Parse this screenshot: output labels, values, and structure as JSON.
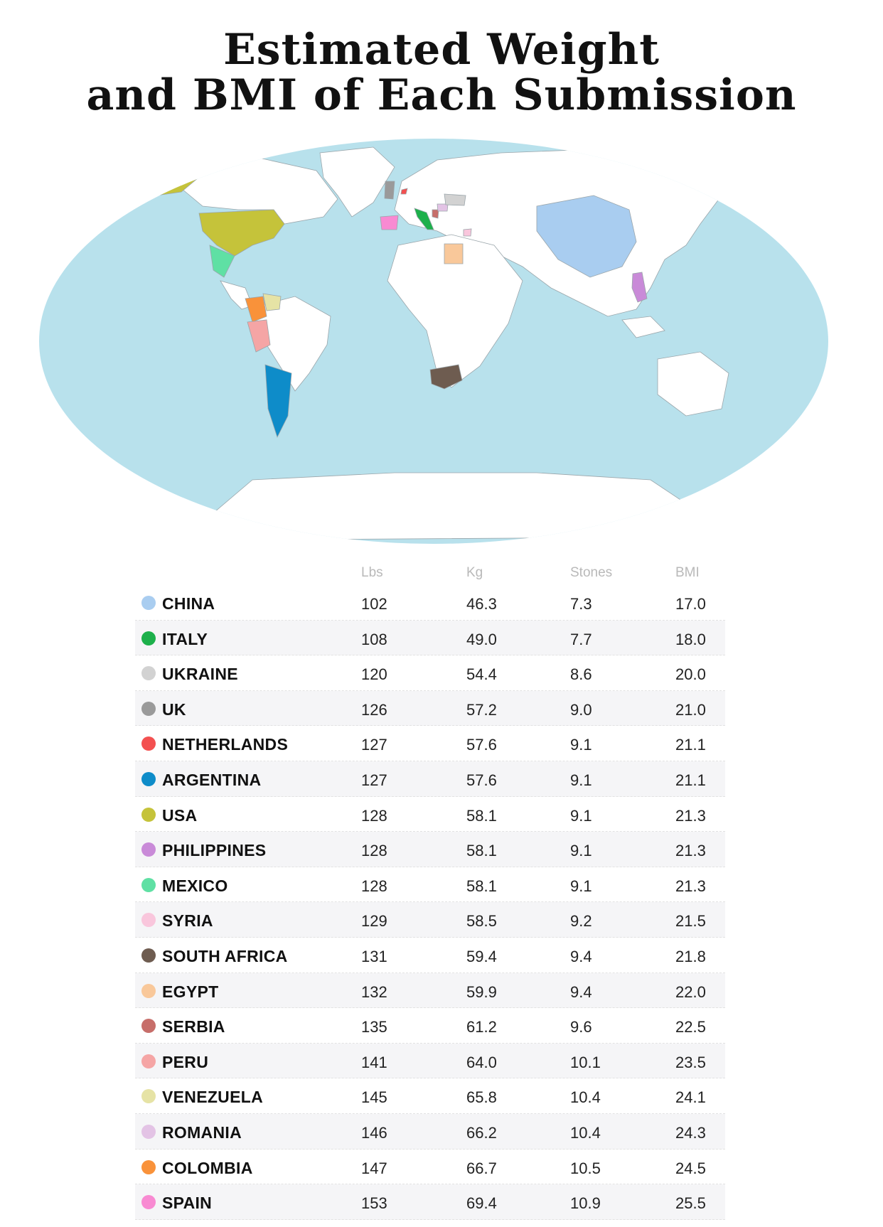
{
  "title_line1": "Estimated Weight",
  "title_line2": "and BMI of Each Submission",
  "columns": [
    "Lbs",
    "Kg",
    "Stones",
    "BMI"
  ],
  "ocean_color": "#b8e1ec",
  "rows": [
    {
      "country": "CHINA",
      "color": "#a9cdf0",
      "lbs": "102",
      "kg": "46.3",
      "stones": "7.3",
      "bmi": "17.0"
    },
    {
      "country": "ITALY",
      "color": "#1db04b",
      "lbs": "108",
      "kg": "49.0",
      "stones": "7.7",
      "bmi": "18.0"
    },
    {
      "country": "UKRAINE",
      "color": "#d2d2d2",
      "lbs": "120",
      "kg": "54.4",
      "stones": "8.6",
      "bmi": "20.0"
    },
    {
      "country": "UK",
      "color": "#9a9a9a",
      "lbs": "126",
      "kg": "57.2",
      "stones": "9.0",
      "bmi": "21.0"
    },
    {
      "country": "NETHERLANDS",
      "color": "#f35050",
      "lbs": "127",
      "kg": "57.6",
      "stones": "9.1",
      "bmi": "21.1"
    },
    {
      "country": "ARGENTINA",
      "color": "#0e8cc9",
      "lbs": "127",
      "kg": "57.6",
      "stones": "9.1",
      "bmi": "21.1"
    },
    {
      "country": "USA",
      "color": "#c5c33a",
      "lbs": "128",
      "kg": "58.1",
      "stones": "9.1",
      "bmi": "21.3"
    },
    {
      "country": "PHILIPPINES",
      "color": "#c98ad8",
      "lbs": "128",
      "kg": "58.1",
      "stones": "9.1",
      "bmi": "21.3"
    },
    {
      "country": "MEXICO",
      "color": "#5fe0a4",
      "lbs": "128",
      "kg": "58.1",
      "stones": "9.1",
      "bmi": "21.3"
    },
    {
      "country": "SYRIA",
      "color": "#f9c6dc",
      "lbs": "129",
      "kg": "58.5",
      "stones": "9.2",
      "bmi": "21.5"
    },
    {
      "country": "SOUTH AFRICA",
      "color": "#6e5c50",
      "lbs": "131",
      "kg": "59.4",
      "stones": "9.4",
      "bmi": "21.8"
    },
    {
      "country": "EGYPT",
      "color": "#f9c89a",
      "lbs": "132",
      "kg": "59.9",
      "stones": "9.4",
      "bmi": "22.0"
    },
    {
      "country": "SERBIA",
      "color": "#c76e6a",
      "lbs": "135",
      "kg": "61.2",
      "stones": "9.6",
      "bmi": "22.5"
    },
    {
      "country": "PERU",
      "color": "#f5a5a5",
      "lbs": "141",
      "kg": "64.0",
      "stones": "10.1",
      "bmi": "23.5"
    },
    {
      "country": "VENEZUELA",
      "color": "#e6e3a5",
      "lbs": "145",
      "kg": "65.8",
      "stones": "10.4",
      "bmi": "24.1"
    },
    {
      "country": "ROMANIA",
      "color": "#e3c3e5",
      "lbs": "146",
      "kg": "66.2",
      "stones": "10.4",
      "bmi": "24.3"
    },
    {
      "country": "COLOMBIA",
      "color": "#f9923a",
      "lbs": "147",
      "kg": "66.7",
      "stones": "10.5",
      "bmi": "24.5"
    },
    {
      "country": "SPAIN",
      "color": "#f88ad2",
      "lbs": "153",
      "kg": "69.4",
      "stones": "10.9",
      "bmi": "25.5"
    }
  ]
}
